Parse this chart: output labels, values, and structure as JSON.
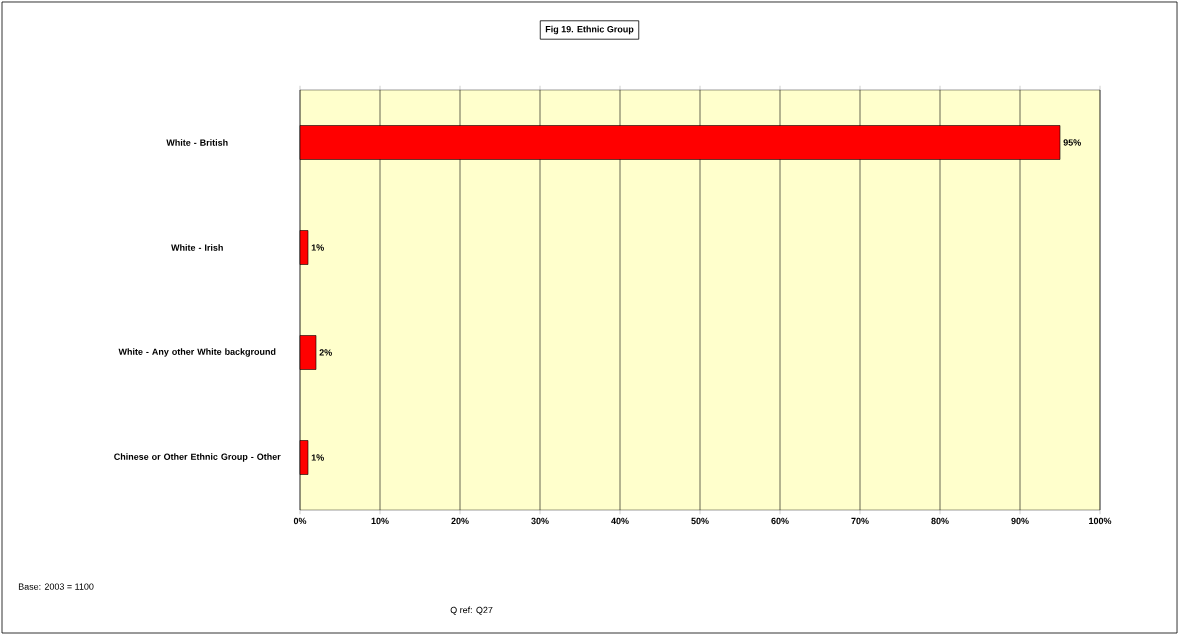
{
  "chart_data": {
    "type": "bar",
    "orientation": "horizontal",
    "title": "Fig 19. Ethnic Group",
    "categories": [
      "White - British",
      "White - Irish",
      "White - Any other White background",
      "Chinese or Other Ethnic Group - Other"
    ],
    "values": [
      95,
      1,
      2,
      1
    ],
    "value_labels": [
      "95%",
      "1%",
      "2%",
      "1%"
    ],
    "color": "#ff0000",
    "xlim": [
      0,
      100
    ],
    "xticks": [
      {
        "value": 0,
        "label": "0%"
      },
      {
        "value": 10,
        "label": "10%"
      },
      {
        "value": 20,
        "label": "20%"
      },
      {
        "value": 30,
        "label": "30%"
      },
      {
        "value": 40,
        "label": "40%"
      },
      {
        "value": 50,
        "label": "50%"
      },
      {
        "value": 60,
        "label": "60%"
      },
      {
        "value": 70,
        "label": "70%"
      },
      {
        "value": 80,
        "label": "80%"
      },
      {
        "value": 90,
        "label": "90%"
      },
      {
        "value": 100,
        "label": "100%"
      }
    ],
    "grid": "x",
    "annotations": [
      "Base: 2003 = 1100",
      "Q ref: Q27"
    ]
  }
}
